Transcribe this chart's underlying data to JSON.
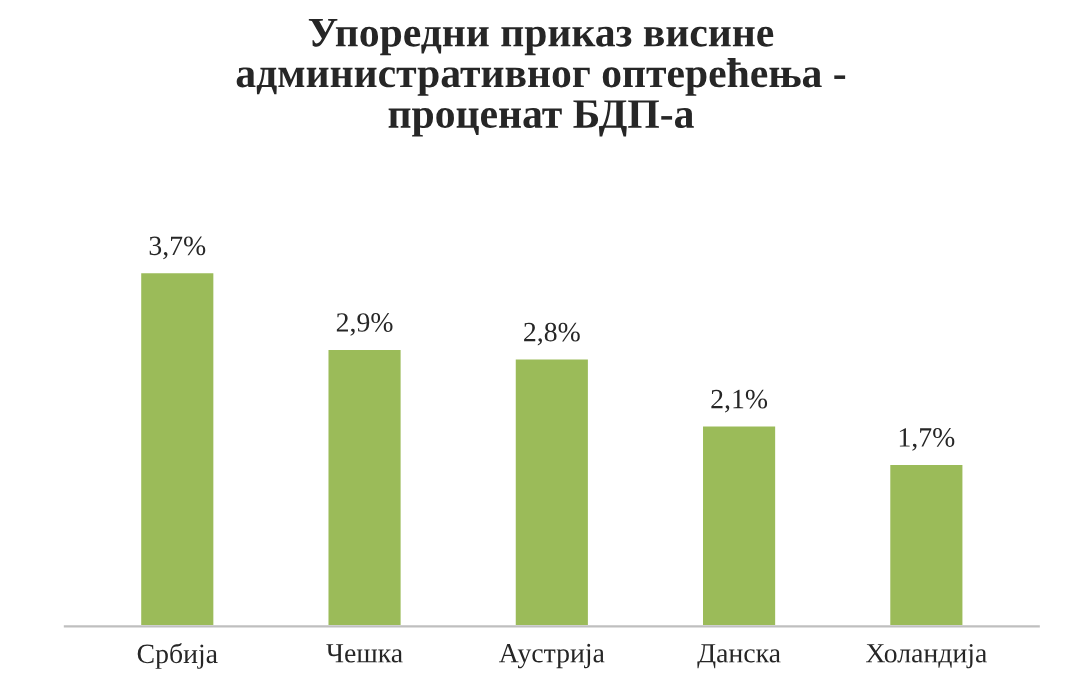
{
  "chart_data": {
    "type": "bar",
    "title": "Упоредни приказ висине\nадминистративног оптерећења -\nпроценат БДП-а",
    "categories": [
      "Србија",
      "Чешка",
      "Аустрија",
      "Данска",
      "Холандија"
    ],
    "values": [
      3.7,
      2.9,
      2.8,
      2.1,
      1.7
    ],
    "value_labels": [
      "3,7%",
      "2,9%",
      "2,8%",
      "2,1%",
      "1,7%"
    ],
    "color": "#9bbb59",
    "grid": false,
    "legend": false
  }
}
